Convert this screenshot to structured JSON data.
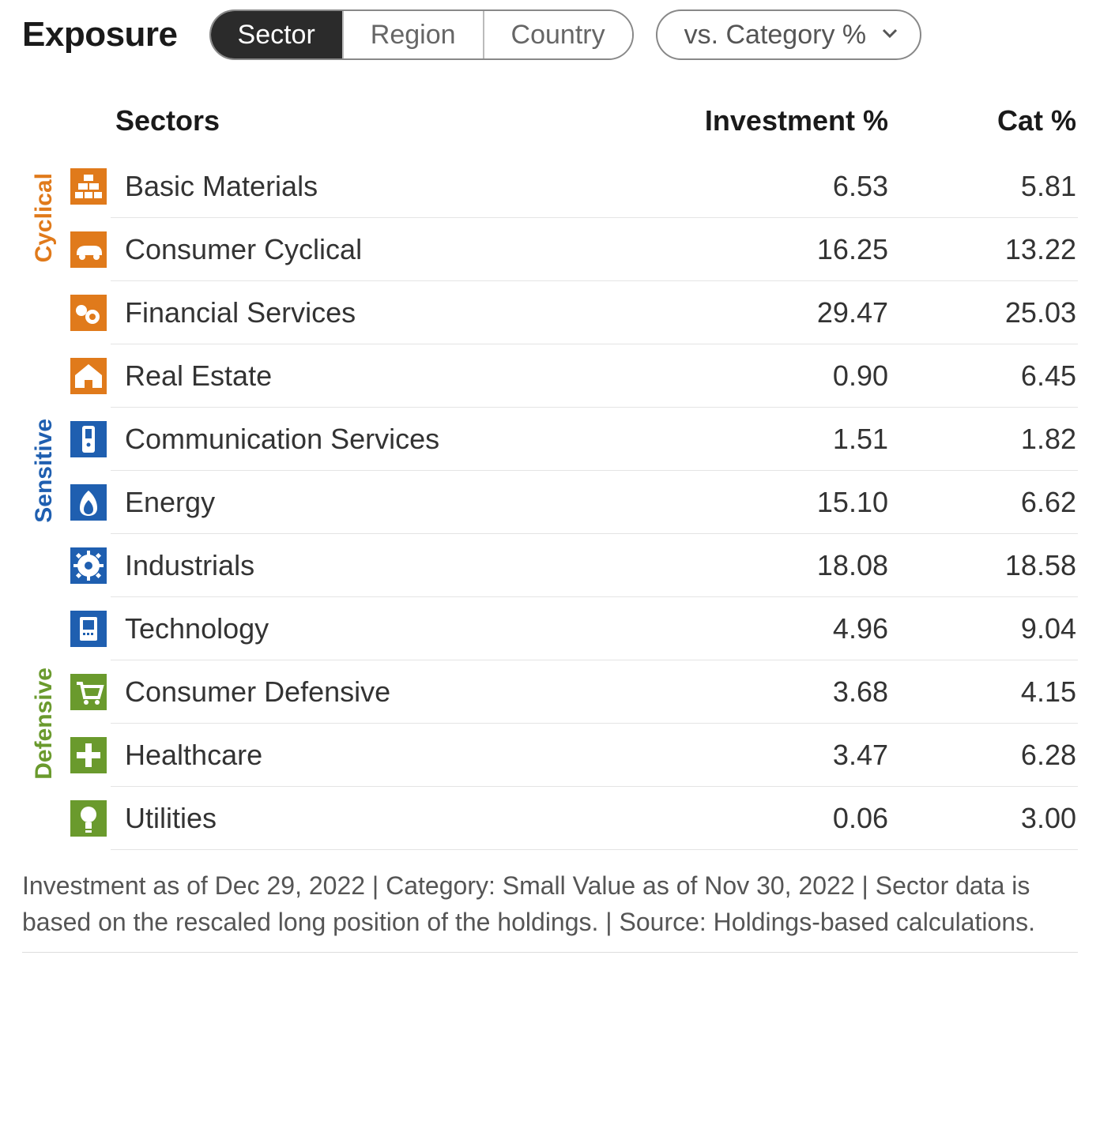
{
  "title": "Exposure",
  "tabs": [
    {
      "label": "Sector",
      "active": true
    },
    {
      "label": "Region",
      "active": false
    },
    {
      "label": "Country",
      "active": false
    }
  ],
  "dropdown": {
    "label": "vs. Category %"
  },
  "columns": {
    "sectors_header": "Sectors",
    "investment_header": "Investment  %",
    "category_header": "Cat  %"
  },
  "colors": {
    "cyclical": "#e07a1b",
    "sensitive": "#1f5fb0",
    "defensive": "#6a9a2d"
  },
  "groups": [
    {
      "key": "cyclical",
      "label": "Cyclical",
      "color": "#e07a1b",
      "rows": [
        {
          "icon": "materials-icon",
          "name": "Basic Materials",
          "investment": "6.53",
          "cat": "5.81"
        },
        {
          "icon": "consumer-cyc-icon",
          "name": "Consumer Cyclical",
          "investment": "16.25",
          "cat": "13.22"
        },
        {
          "icon": "financial-icon",
          "name": "Financial Services",
          "investment": "29.47",
          "cat": "25.03"
        },
        {
          "icon": "real-estate-icon",
          "name": "Real Estate",
          "investment": "0.90",
          "cat": "6.45"
        }
      ]
    },
    {
      "key": "sensitive",
      "label": "Sensitive",
      "color": "#1f5fb0",
      "rows": [
        {
          "icon": "comm-services-icon",
          "name": "Communication Services",
          "investment": "1.51",
          "cat": "1.82"
        },
        {
          "icon": "energy-icon",
          "name": "Energy",
          "investment": "15.10",
          "cat": "6.62"
        },
        {
          "icon": "industrials-icon",
          "name": "Industrials",
          "investment": "18.08",
          "cat": "18.58"
        },
        {
          "icon": "technology-icon",
          "name": "Technology",
          "investment": "4.96",
          "cat": "9.04"
        }
      ]
    },
    {
      "key": "defensive",
      "label": "Defensive",
      "color": "#6a9a2d",
      "rows": [
        {
          "icon": "consumer-def-icon",
          "name": "Consumer Defensive",
          "investment": "3.68",
          "cat": "4.15"
        },
        {
          "icon": "healthcare-icon",
          "name": "Healthcare",
          "investment": "3.47",
          "cat": "6.28"
        },
        {
          "icon": "utilities-icon",
          "name": "Utilities",
          "investment": "0.06",
          "cat": "3.00"
        }
      ]
    }
  ],
  "footnote": "Investment as of Dec 29, 2022 | Category: Small Value as of Nov 30, 2022 | Sector data is based on the rescaled long position of the holdings. | Source: Holdings-based calculations."
}
